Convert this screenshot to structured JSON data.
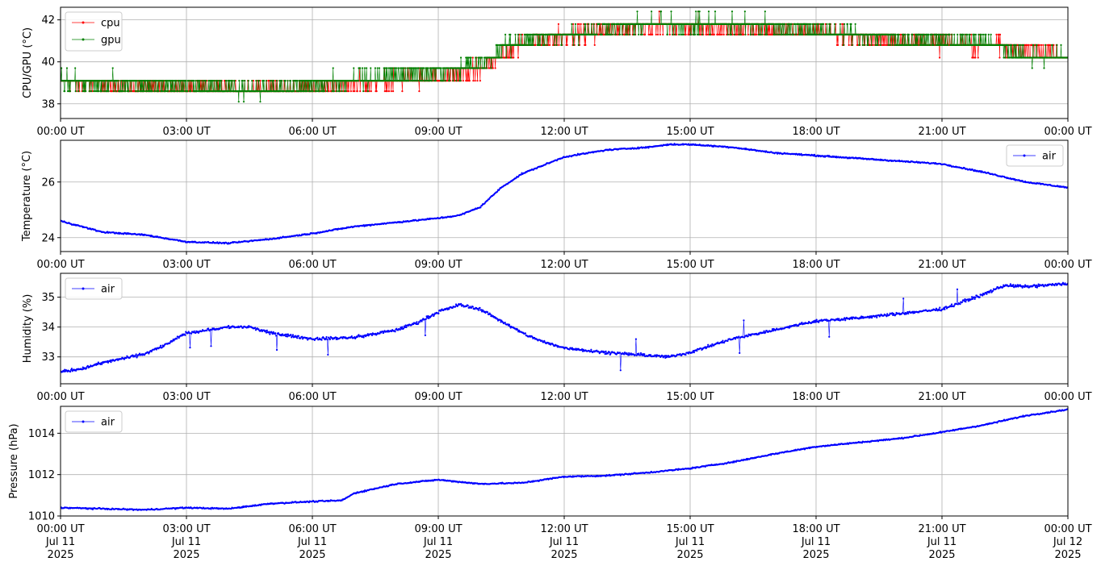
{
  "chart_data": [
    {
      "type": "line",
      "ylabel": "CPU/GPU (°C)",
      "xlim": [
        "2025-07-11T00:00Z",
        "2025-07-12T00:00Z"
      ],
      "ylim": [
        37.3,
        42.6
      ],
      "yticks": [
        38,
        40,
        42
      ],
      "grid": true,
      "legend": "top-left",
      "series": [
        {
          "name": "cpu",
          "color": "#ff0000",
          "levels": [
            38.6,
            39.1,
            39.7,
            40.2,
            40.8,
            41.3,
            41.8,
            42.4
          ],
          "x_hours": [
            0,
            1,
            2,
            3,
            4,
            5,
            6,
            7,
            8,
            9,
            10,
            10.5,
            11,
            12,
            13,
            14,
            15,
            16,
            17,
            18,
            19,
            20,
            21,
            22,
            22.5,
            23,
            24
          ],
          "values": [
            39.0,
            38.9,
            38.8,
            38.8,
            38.7,
            38.7,
            38.8,
            39.0,
            39.1,
            39.2,
            39.6,
            40.3,
            40.9,
            41.2,
            41.5,
            41.7,
            41.7,
            41.6,
            41.5,
            41.4,
            41.2,
            41.0,
            40.9,
            40.8,
            40.7,
            40.5,
            40.4
          ]
        },
        {
          "name": "gpu",
          "color": "#008000",
          "levels": [
            38.1,
            38.6,
            39.1,
            39.7,
            40.2,
            40.8,
            41.3,
            41.8,
            42.4
          ],
          "x_hours": [
            0,
            1,
            2,
            3,
            4,
            5,
            6,
            7,
            8,
            9,
            10,
            10.5,
            11,
            12,
            13,
            14,
            15,
            16,
            17,
            18,
            19,
            20,
            21,
            22,
            22.5,
            23,
            24
          ],
          "values": [
            39.1,
            39.0,
            38.9,
            38.8,
            38.7,
            38.7,
            38.9,
            39.2,
            39.3,
            39.5,
            39.9,
            40.6,
            41.0,
            41.3,
            41.6,
            41.8,
            41.8,
            41.8,
            41.7,
            41.5,
            41.3,
            41.1,
            41.0,
            40.9,
            40.6,
            40.3,
            40.2
          ]
        }
      ]
    },
    {
      "type": "line",
      "ylabel": "Temperature (°C)",
      "xlim": [
        "2025-07-11T00:00Z",
        "2025-07-12T00:00Z"
      ],
      "ylim": [
        23.5,
        27.5
      ],
      "yticks": [
        24,
        26
      ],
      "grid": true,
      "legend": "top-right",
      "series": [
        {
          "name": "air",
          "color": "#0000ff",
          "x_hours": [
            0,
            0.5,
            1,
            2,
            3,
            4,
            5,
            6,
            7,
            8,
            9,
            9.5,
            10,
            10.5,
            11,
            11.5,
            12,
            13,
            14,
            14.5,
            15,
            16,
            17,
            18,
            19,
            20,
            21,
            22,
            23,
            24
          ],
          "values": [
            24.6,
            24.4,
            24.2,
            24.1,
            23.85,
            23.8,
            23.95,
            24.15,
            24.4,
            24.55,
            24.7,
            24.8,
            25.1,
            25.8,
            26.3,
            26.6,
            26.9,
            27.15,
            27.25,
            27.35,
            27.35,
            27.25,
            27.05,
            26.95,
            26.85,
            26.75,
            26.65,
            26.35,
            26.0,
            25.8
          ]
        }
      ]
    },
    {
      "type": "line",
      "ylabel": "Humidity (%)",
      "xlim": [
        "2025-07-11T00:00Z",
        "2025-07-12T00:00Z"
      ],
      "ylim": [
        32.1,
        35.8
      ],
      "yticks": [
        33,
        34,
        35
      ],
      "grid": true,
      "legend": "top-left",
      "series": [
        {
          "name": "air",
          "color": "#0000ff",
          "x_hours": [
            0,
            0.5,
            1,
            2,
            2.5,
            3,
            4,
            4.5,
            5,
            6,
            7,
            8,
            8.5,
            9,
            9.5,
            10,
            10.5,
            11,
            11.5,
            12,
            13,
            14,
            14.5,
            15,
            16,
            17,
            18,
            19,
            20,
            21,
            21.5,
            22,
            22.5,
            23,
            24
          ],
          "values": [
            32.5,
            32.6,
            32.8,
            33.1,
            33.4,
            33.8,
            34.0,
            34.0,
            33.8,
            33.6,
            33.65,
            33.9,
            34.15,
            34.5,
            34.75,
            34.6,
            34.2,
            33.8,
            33.5,
            33.3,
            33.15,
            33.05,
            33.0,
            33.15,
            33.6,
            33.9,
            34.2,
            34.3,
            34.45,
            34.6,
            34.85,
            35.1,
            35.4,
            35.35,
            35.45
          ]
        }
      ]
    },
    {
      "type": "line",
      "ylabel": "Pressure (hPa)",
      "xlim": [
        "2025-07-11T00:00Z",
        "2025-07-12T00:00Z"
      ],
      "ylim": [
        1010,
        1015.3
      ],
      "yticks": [
        1010,
        1012,
        1014
      ],
      "grid": true,
      "legend": "top-left",
      "xticks": [
        {
          "time": "00:00 UT",
          "date": "Jul 11",
          "year": "2025"
        },
        {
          "time": "03:00 UT",
          "date": "Jul 11",
          "year": "2025"
        },
        {
          "time": "06:00 UT",
          "date": "Jul 11",
          "year": "2025"
        },
        {
          "time": "09:00 UT",
          "date": "Jul 11",
          "year": "2025"
        },
        {
          "time": "12:00 UT",
          "date": "Jul 11",
          "year": "2025"
        },
        {
          "time": "15:00 UT",
          "date": "Jul 11",
          "year": "2025"
        },
        {
          "time": "18:00 UT",
          "date": "Jul 11",
          "year": "2025"
        },
        {
          "time": "21:00 UT",
          "date": "Jul 11",
          "year": "2025"
        },
        {
          "time": "00:00 UT",
          "date": "Jul 12",
          "year": "2025"
        }
      ],
      "series": [
        {
          "name": "air",
          "color": "#0000ff",
          "x_hours": [
            0,
            1,
            2,
            3,
            4,
            5,
            6,
            6.7,
            7,
            8,
            9,
            10,
            11,
            12,
            13,
            14,
            15,
            16,
            17,
            18,
            19,
            20,
            21,
            22,
            23,
            24
          ],
          "values": [
            1010.4,
            1010.35,
            1010.3,
            1010.4,
            1010.35,
            1010.6,
            1010.7,
            1010.75,
            1011.1,
            1011.55,
            1011.75,
            1011.55,
            1011.6,
            1011.9,
            1011.95,
            1012.1,
            1012.3,
            1012.6,
            1013.0,
            1013.35,
            1013.55,
            1013.75,
            1014.05,
            1014.4,
            1014.85,
            1015.15
          ]
        }
      ]
    }
  ],
  "xtick_labels": [
    "00:00 UT",
    "03:00 UT",
    "06:00 UT",
    "09:00 UT",
    "12:00 UT",
    "15:00 UT",
    "18:00 UT",
    "21:00 UT",
    "00:00 UT"
  ]
}
